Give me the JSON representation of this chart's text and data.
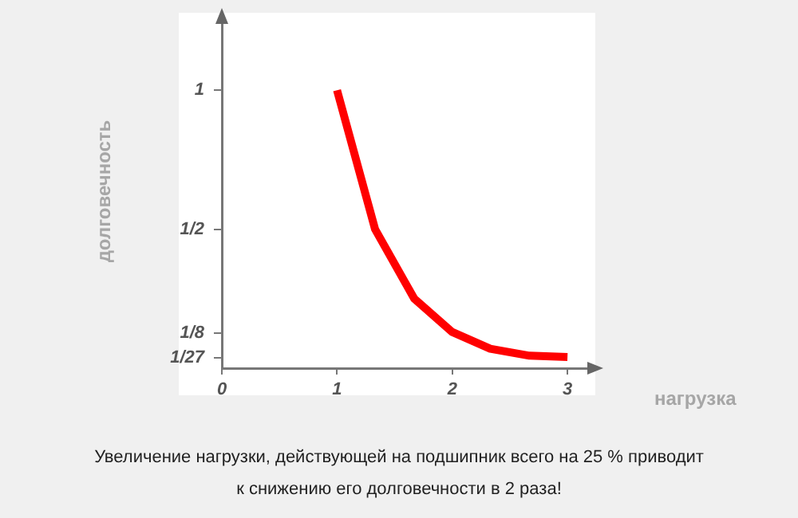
{
  "chart_data": {
    "type": "line",
    "xlabel": "нагрузка",
    "ylabel": "долговечность",
    "x": [
      1,
      1.33,
      1.67,
      2,
      2.33,
      2.67,
      3
    ],
    "series": [
      {
        "color": "#ff0000",
        "values": [
          1,
          0.5,
          0.25,
          0.13,
          0.07,
          0.045,
          0.04
        ]
      }
    ],
    "xlim": [
      0,
      3.2
    ],
    "xticks": [
      0,
      1,
      2,
      3
    ],
    "ylim": [
      0,
      1.25
    ],
    "yticks": [
      {
        "value": 0.037,
        "label": "1/27"
      },
      {
        "value": 0.125,
        "label": "1/8"
      },
      {
        "value": 0.5,
        "label": "1/2"
      },
      1
    ],
    "grid": false,
    "legend": false,
    "marker": "none",
    "line_style": "solid",
    "annotations": [
      "Увеличение нагрузки, действующей на подшипник всего на 25 % приводит",
      "к снижению его долговечности в 2 раза!"
    ]
  }
}
